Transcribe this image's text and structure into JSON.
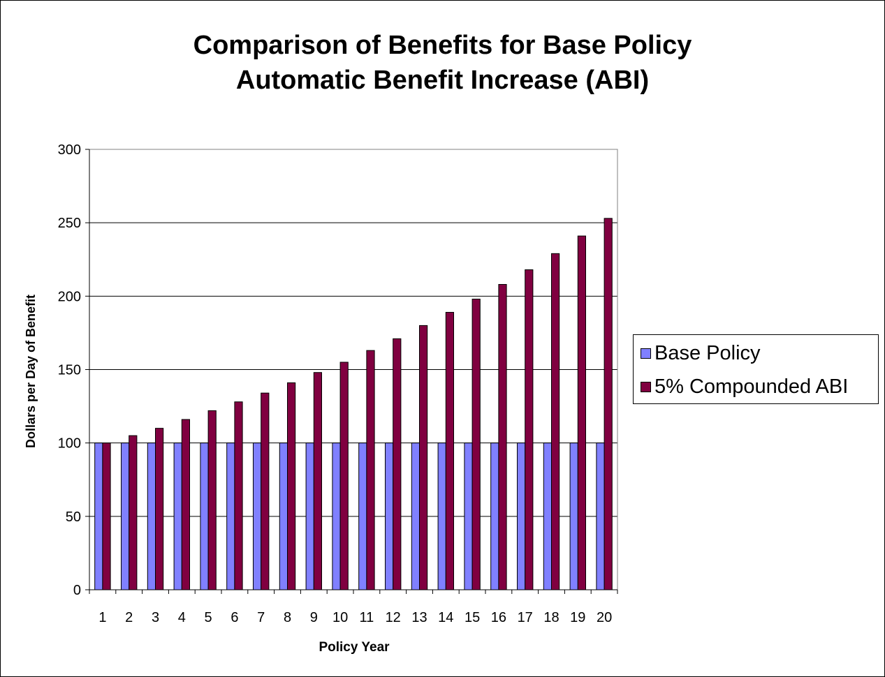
{
  "chart_data": {
    "type": "bar",
    "title_lines": [
      "Comparison of Benefits for Base Policy",
      "Automatic Benefit Increase (ABI)"
    ],
    "xlabel": "Policy Year",
    "ylabel": "Dollars per Day of Benefit",
    "categories": [
      "1",
      "2",
      "3",
      "4",
      "5",
      "6",
      "7",
      "8",
      "9",
      "10",
      "11",
      "12",
      "13",
      "14",
      "15",
      "16",
      "17",
      "18",
      "19",
      "20"
    ],
    "series": [
      {
        "name": "Base Policy",
        "color": "#8080ff",
        "values": [
          100,
          100,
          100,
          100,
          100,
          100,
          100,
          100,
          100,
          100,
          100,
          100,
          100,
          100,
          100,
          100,
          100,
          100,
          100,
          100
        ]
      },
      {
        "name": "5% Compounded ABI",
        "color": "#800040",
        "values": [
          100,
          105,
          110,
          116,
          122,
          128,
          134,
          141,
          148,
          155,
          163,
          171,
          180,
          189,
          198,
          208,
          218,
          229,
          241,
          253
        ]
      }
    ],
    "ylim": [
      0,
      300
    ],
    "yticks": [
      0,
      50,
      100,
      150,
      200,
      250,
      300
    ],
    "grid": true,
    "legend_position": "right"
  }
}
